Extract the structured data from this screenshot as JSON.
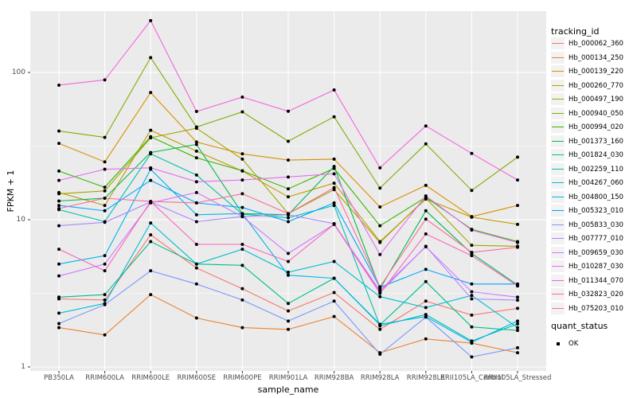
{
  "chart_data": {
    "type": "line",
    "xlabel": "sample_name",
    "ylabel": "FPKM + 1",
    "y_scale": "log10",
    "ylim": [
      1,
      300
    ],
    "y_ticks": [
      1,
      10,
      100
    ],
    "y_minor_ticks": [
      3.162,
      31.62
    ],
    "grid": "on",
    "panel_bg": "#ebebeb",
    "grid_color": "#ffffff",
    "tick_text_color": "#4d4d4d",
    "point_color": "#000000",
    "legend_position": "right",
    "categories": [
      "PB350LA",
      "RRIM600LA",
      "RRIM600LE",
      "RRIM600SE",
      "RRIM600PE",
      "RRIM901LA",
      "RRIM928BA",
      "RRIM928LA",
      "RRIM928LE",
      "RRII105LA_Control",
      "RRII105LA_Stressed"
    ],
    "legend_tracking_title": "tracking_id",
    "legend_quant_title": "quant_status",
    "legend_quant_value": "OK",
    "series": [
      {
        "name": "Hb_000062_360",
        "color": "#F8766D",
        "values": [
          2.9,
          2.85,
          7.9,
          4.7,
          3.4,
          2.4,
          3.2,
          1.8,
          2.8,
          2.25,
          2.5
        ]
      },
      {
        "name": "Hb_000134_250",
        "color": "#EA8331",
        "values": [
          1.85,
          1.65,
          3.1,
          2.15,
          1.85,
          1.8,
          2.2,
          1.25,
          1.55,
          1.45,
          1.25
        ]
      },
      {
        "name": "Hb_000139_220",
        "color": "#D89000",
        "values": [
          33,
          24.7,
          73,
          33.7,
          28,
          25.4,
          25.8,
          12.2,
          17.1,
          10.5,
          12.5
        ]
      },
      {
        "name": "Hb_000260_770",
        "color": "#C09B00",
        "values": [
          15.3,
          12.5,
          40.5,
          29.2,
          21.4,
          14.3,
          17.7,
          7.1,
          13.8,
          10.4,
          9.3
        ]
      },
      {
        "name": "Hb_000497_190",
        "color": "#A3A500",
        "values": [
          15.0,
          15.7,
          36.0,
          41.8,
          25.8,
          11.0,
          16.0,
          7.0,
          14.0,
          6.7,
          6.6
        ]
      },
      {
        "name": "Hb_000940_050",
        "color": "#7CAE00",
        "values": [
          40,
          36.2,
          126,
          42.6,
          54,
          34.1,
          50,
          16.4,
          32.7,
          15.8,
          26.6
        ]
      },
      {
        "name": "Hb_000994_020",
        "color": "#39B600",
        "values": [
          21.4,
          16.6,
          36.6,
          26.3,
          21.5,
          16.2,
          22.3,
          9.1,
          14.2,
          8.6,
          7.1
        ]
      },
      {
        "name": "Hb_001373_160",
        "color": "#00BB4E",
        "values": [
          13.4,
          14.0,
          28.6,
          32.4,
          11.0,
          10.8,
          23.0,
          3.4,
          11.5,
          5.9,
          3.6
        ]
      },
      {
        "name": "Hb_001824_030",
        "color": "#00C087",
        "values": [
          2.98,
          3.1,
          7.1,
          5.0,
          4.9,
          2.7,
          4.0,
          1.93,
          3.8,
          1.87,
          1.77
        ]
      },
      {
        "name": "Hb_002259_110",
        "color": "#00C0AF",
        "values": [
          11.7,
          9.7,
          28.0,
          20.1,
          10.9,
          10.3,
          12.5,
          1.9,
          2.27,
          1.5,
          1.96
        ]
      },
      {
        "name": "Hb_004267_060",
        "color": "#00BDD0",
        "values": [
          2.32,
          2.7,
          9.5,
          5.0,
          6.3,
          4.4,
          5.2,
          3.0,
          2.53,
          3.06,
          1.85
        ]
      },
      {
        "name": "Hb_004800_150",
        "color": "#00B4EF",
        "values": [
          5.0,
          5.7,
          22.0,
          10.8,
          11.0,
          4.2,
          4.0,
          1.95,
          2.2,
          1.47,
          2.05
        ]
      },
      {
        "name": "Hb_005323_010",
        "color": "#00A5FF",
        "values": [
          12.5,
          11.5,
          18.5,
          13.0,
          12.1,
          9.7,
          13.0,
          3.47,
          4.6,
          3.66,
          3.66
        ]
      },
      {
        "name": "Hb_005833_030",
        "color": "#7997FF",
        "values": [
          1.97,
          2.65,
          4.5,
          3.66,
          2.85,
          2.05,
          2.8,
          1.22,
          2.18,
          1.17,
          1.35
        ]
      },
      {
        "name": "Hb_007777_010",
        "color": "#AC88FF",
        "values": [
          9.1,
          9.6,
          13.2,
          9.7,
          10.5,
          10.8,
          9.4,
          3.2,
          6.6,
          2.9,
          2.84
        ]
      },
      {
        "name": "Hb_009659_030",
        "color": "#CF78FF",
        "values": [
          4.15,
          5.0,
          13.0,
          15.3,
          10.5,
          5.9,
          9.3,
          3.3,
          6.55,
          3.24,
          2.98
        ]
      },
      {
        "name": "Hb_010287_030",
        "color": "#E76BF3",
        "values": [
          18.5,
          22.0,
          22.5,
          18.1,
          18.6,
          19.5,
          20.5,
          5.8,
          14.5,
          8.5,
          7.0
        ]
      },
      {
        "name": "Hb_011344_070",
        "color": "#F763E0",
        "values": [
          82,
          89,
          225,
          54.3,
          68,
          54.5,
          76,
          22.5,
          43.3,
          28.2,
          18.6
        ]
      },
      {
        "name": "Hb_032823_020",
        "color": "#FF62BC",
        "values": [
          6.3,
          4.5,
          13.3,
          6.8,
          6.8,
          5.2,
          9.3,
          3.16,
          8.0,
          5.7,
          3.55
        ]
      },
      {
        "name": "Hb_075203_010",
        "color": "#FF6A98",
        "values": [
          11.9,
          14.0,
          13.3,
          13.0,
          15.0,
          11.0,
          16.5,
          3.5,
          10.1,
          6.0,
          6.5
        ]
      }
    ]
  }
}
